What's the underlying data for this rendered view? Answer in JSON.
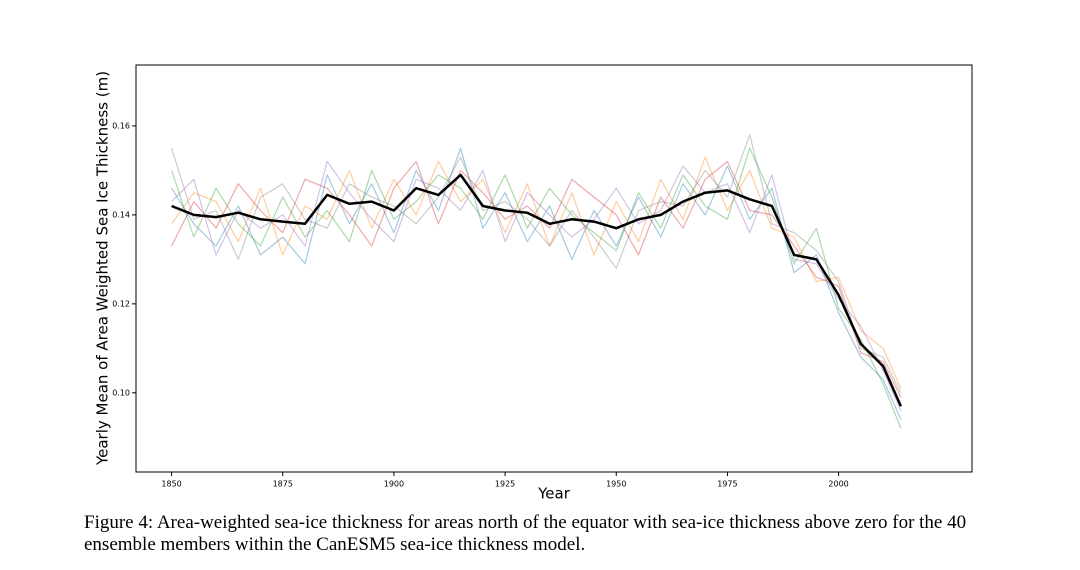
{
  "chart_data": {
    "type": "line",
    "ylabel": "Yearly Mean of Area Weighted Sea Ice Thickness (m)",
    "xlabel": "Year",
    "caption": "Figure 4: Area-weighted sea-ice thickness for areas north of the equator with sea-ice thickness above zero for the 40 ensemble members within the CanESM5 sea-ice thickness model.",
    "x": [
      1850,
      1855,
      1860,
      1865,
      1870,
      1875,
      1880,
      1885,
      1890,
      1895,
      1900,
      1905,
      1910,
      1915,
      1920,
      1925,
      1930,
      1935,
      1940,
      1945,
      1950,
      1955,
      1960,
      1965,
      1970,
      1975,
      1980,
      1985,
      1990,
      1995,
      2000,
      2005,
      2010,
      2014
    ],
    "xlim": [
      1842,
      2030
    ],
    "xticks": [
      1850,
      1875,
      1900,
      1925,
      1950,
      1975,
      2000
    ],
    "ylim": [
      0.0822,
      0.1737
    ],
    "yticks": [
      {
        "value": 0.1,
        "label": "0.10"
      },
      0.12,
      0.14,
      0.16
    ],
    "grid": false,
    "series": [
      {
        "color": "#1f77b466",
        "values": [
          0.146,
          0.138,
          0.133,
          0.142,
          0.131,
          0.135,
          0.129,
          0.149,
          0.138,
          0.147,
          0.136,
          0.15,
          0.141,
          0.155,
          0.137,
          0.145,
          0.134,
          0.142,
          0.13,
          0.141,
          0.133,
          0.144,
          0.135,
          0.147,
          0.14,
          0.151,
          0.139,
          0.146,
          0.127,
          0.131,
          0.118,
          0.108,
          0.103,
          0.094
        ]
      },
      {
        "color": "#ff7f0e66",
        "values": [
          0.138,
          0.145,
          0.143,
          0.134,
          0.146,
          0.131,
          0.142,
          0.139,
          0.15,
          0.137,
          0.148,
          0.14,
          0.152,
          0.143,
          0.148,
          0.136,
          0.147,
          0.133,
          0.145,
          0.131,
          0.143,
          0.134,
          0.148,
          0.139,
          0.153,
          0.141,
          0.15,
          0.137,
          0.135,
          0.125,
          0.126,
          0.114,
          0.11,
          0.101
        ]
      },
      {
        "color": "#2ca02c66",
        "values": [
          0.15,
          0.135,
          0.146,
          0.138,
          0.133,
          0.144,
          0.135,
          0.141,
          0.134,
          0.15,
          0.139,
          0.143,
          0.149,
          0.146,
          0.139,
          0.149,
          0.137,
          0.146,
          0.14,
          0.136,
          0.132,
          0.145,
          0.137,
          0.149,
          0.142,
          0.139,
          0.155,
          0.144,
          0.129,
          0.137,
          0.119,
          0.112,
          0.102,
          0.092
        ]
      },
      {
        "color": "#d6272866",
        "values": [
          0.133,
          0.143,
          0.137,
          0.147,
          0.141,
          0.136,
          0.148,
          0.146,
          0.14,
          0.133,
          0.146,
          0.152,
          0.138,
          0.15,
          0.145,
          0.139,
          0.142,
          0.137,
          0.148,
          0.144,
          0.14,
          0.131,
          0.144,
          0.137,
          0.148,
          0.152,
          0.141,
          0.14,
          0.133,
          0.126,
          0.124,
          0.109,
          0.107,
          0.099
        ]
      },
      {
        "color": "#9467bd66",
        "values": [
          0.143,
          0.148,
          0.131,
          0.141,
          0.137,
          0.14,
          0.133,
          0.152,
          0.145,
          0.139,
          0.134,
          0.148,
          0.146,
          0.141,
          0.15,
          0.134,
          0.145,
          0.14,
          0.135,
          0.139,
          0.146,
          0.138,
          0.141,
          0.151,
          0.145,
          0.147,
          0.136,
          0.149,
          0.13,
          0.129,
          0.121,
          0.115,
          0.105,
          0.096
        ]
      },
      {
        "color": "#7f7f7f66",
        "values": [
          0.155,
          0.139,
          0.141,
          0.13,
          0.144,
          0.147,
          0.139,
          0.137,
          0.147,
          0.144,
          0.142,
          0.138,
          0.144,
          0.153,
          0.141,
          0.143,
          0.139,
          0.133,
          0.141,
          0.135,
          0.128,
          0.141,
          0.143,
          0.142,
          0.15,
          0.144,
          0.158,
          0.138,
          0.136,
          0.132,
          0.125,
          0.11,
          0.108,
          0.1
        ]
      },
      {
        "color": "#000000",
        "values": [
          0.142,
          0.14,
          0.1395,
          0.1405,
          0.139,
          0.1385,
          0.138,
          0.1445,
          0.1425,
          0.143,
          0.141,
          0.146,
          0.1445,
          0.149,
          0.142,
          0.141,
          0.1405,
          0.138,
          0.139,
          0.1385,
          0.137,
          0.139,
          0.14,
          0.143,
          0.145,
          0.1455,
          0.1435,
          0.142,
          0.131,
          0.13,
          0.122,
          0.111,
          0.106,
          0.097
        ]
      }
    ]
  }
}
